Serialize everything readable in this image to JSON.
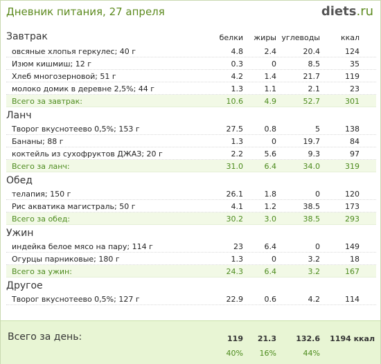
{
  "header": {
    "title": "Дневник питания, 27 апреля",
    "logo_main": "diets",
    "logo_tld": ".ru"
  },
  "columns": {
    "protein": "белки",
    "fat": "жиры",
    "carbs": "углеводы",
    "kcal": "ккал"
  },
  "sections": [
    {
      "title": "Завтрак",
      "items": [
        {
          "name": "овсяные хлопья геркулес; 40 г",
          "protein": "4.8",
          "fat": "2.4",
          "carbs": "20.4",
          "kcal": "124"
        },
        {
          "name": "Изюм кишмиш; 12 г",
          "protein": "0.3",
          "fat": "0",
          "carbs": "8.5",
          "kcal": "35"
        },
        {
          "name": "Хлеб многозерновой; 51 г",
          "protein": "4.2",
          "fat": "1.4",
          "carbs": "21.7",
          "kcal": "119"
        },
        {
          "name": "молоко домик в деревне 2,5%; 44 г",
          "protein": "1.3",
          "fat": "1.1",
          "carbs": "2.1",
          "kcal": "23"
        }
      ],
      "total": {
        "name": "Всего за завтрак:",
        "protein": "10.6",
        "fat": "4.9",
        "carbs": "52.7",
        "kcal": "301"
      }
    },
    {
      "title": "Ланч",
      "items": [
        {
          "name": "Творог вкуснотеево 0,5%; 153 г",
          "protein": "27.5",
          "fat": "0.8",
          "carbs": "5",
          "kcal": "138"
        },
        {
          "name": "Бананы; 88 г",
          "protein": "1.3",
          "fat": "0",
          "carbs": "19.7",
          "kcal": "84"
        },
        {
          "name": "коктейль из сухофруктов ДЖАЗ; 20 г",
          "protein": "2.2",
          "fat": "5.6",
          "carbs": "9.3",
          "kcal": "97"
        }
      ],
      "total": {
        "name": "Всего за ланч:",
        "protein": "31.0",
        "fat": "6.4",
        "carbs": "34.0",
        "kcal": "319"
      }
    },
    {
      "title": "Обед",
      "items": [
        {
          "name": "телапия; 150 г",
          "protein": "26.1",
          "fat": "1.8",
          "carbs": "0",
          "kcal": "120"
        },
        {
          "name": "Рис акватика магистраль; 50 г",
          "protein": "4.1",
          "fat": "1.2",
          "carbs": "38.5",
          "kcal": "173"
        }
      ],
      "total": {
        "name": "Всего за обед:",
        "protein": "30.2",
        "fat": "3.0",
        "carbs": "38.5",
        "kcal": "293"
      }
    },
    {
      "title": "Ужин",
      "items": [
        {
          "name": "индейка белое мясо на пару; 114 г",
          "protein": "23",
          "fat": "6.4",
          "carbs": "0",
          "kcal": "149"
        },
        {
          "name": "Огурцы парниковые; 180 г",
          "protein": "1.3",
          "fat": "0",
          "carbs": "3.2",
          "kcal": "18"
        }
      ],
      "total": {
        "name": "Всего за ужин:",
        "protein": "24.3",
        "fat": "6.4",
        "carbs": "3.2",
        "kcal": "167"
      }
    },
    {
      "title": "Другое",
      "items": [
        {
          "name": "Творог вкуснотеево 0,5%; 127 г",
          "protein": "22.9",
          "fat": "0.6",
          "carbs": "4.2",
          "kcal": "114"
        }
      ]
    }
  ],
  "day_total": {
    "label": "Всего за день:",
    "protein": "119",
    "fat": "21.3",
    "carbs": "132.6",
    "kcal": "1194 ккал",
    "protein_pct": "40%",
    "fat_pct": "16%",
    "carbs_pct": "44%"
  }
}
